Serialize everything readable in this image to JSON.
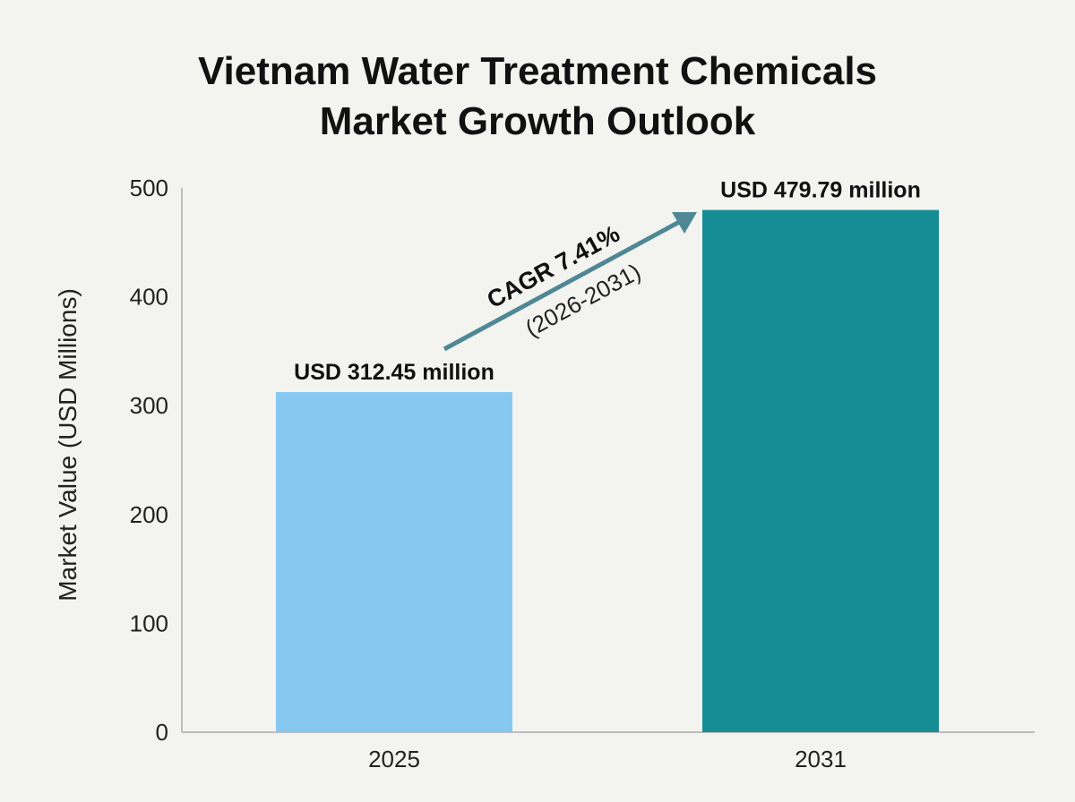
{
  "chart_data": {
    "type": "bar",
    "title_lines": [
      "Vietnam Water Treatment Chemicals",
      "Market Growth Outlook"
    ],
    "categories": [
      "2025",
      "2031"
    ],
    "values": [
      312.45,
      479.79
    ],
    "data_labels": [
      "USD 312.45 million",
      "USD 479.79 million"
    ],
    "ylabel": "Market Value (USD Millions)",
    "xlabel": "",
    "ylim": [
      0,
      500
    ],
    "yticks": [
      0,
      100,
      200,
      300,
      400,
      500
    ],
    "grid": false,
    "colors": [
      "#87c8f0",
      "#168c95"
    ],
    "annotation": {
      "text": "CAGR 7.41%",
      "subtext": "(2026-2031)",
      "arrow_color": "#4f8894"
    }
  }
}
